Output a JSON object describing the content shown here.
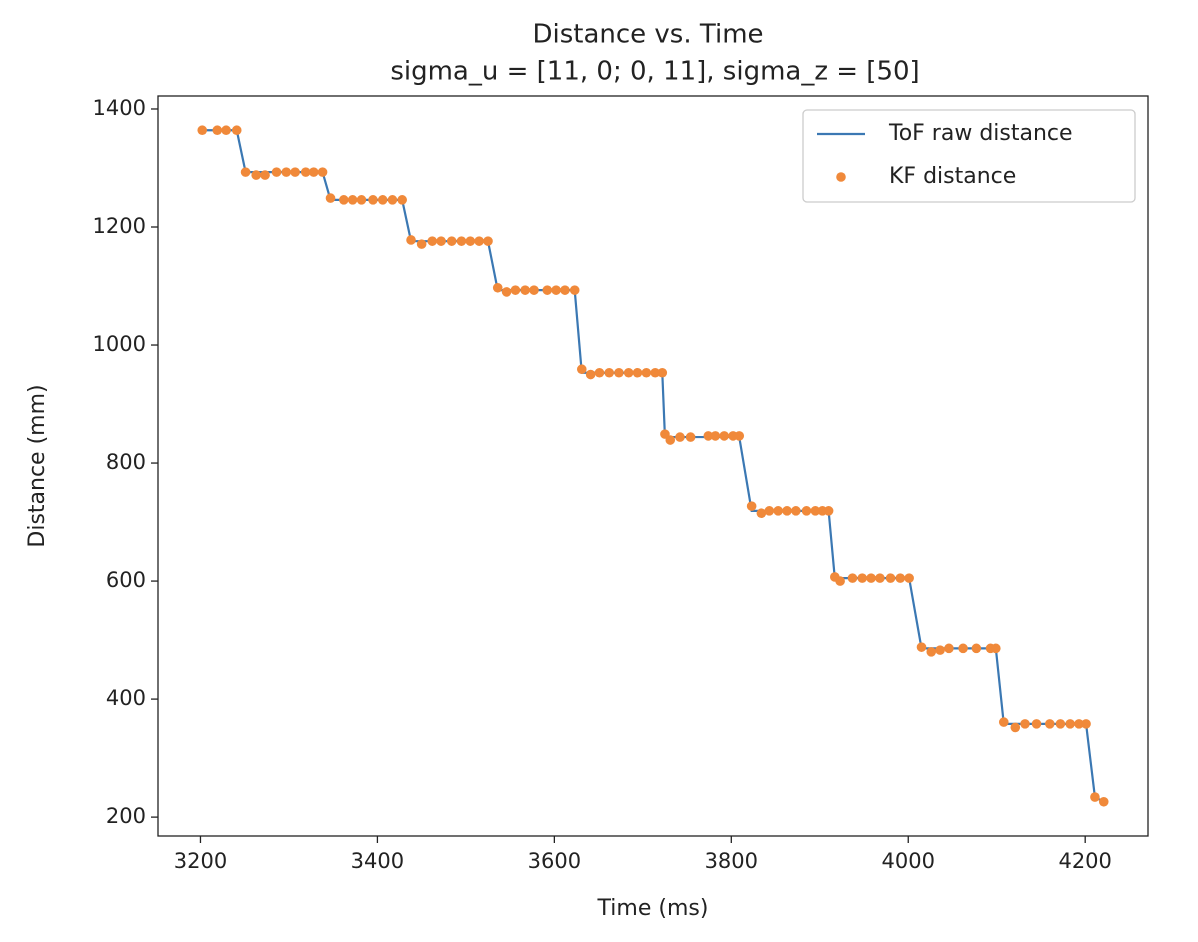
{
  "chart_data": {
    "type": "line",
    "title": "Distance vs. Time",
    "subtitle": "sigma_u = [11, 0; 0, 11], sigma_z = [50]",
    "x_label": "Time (ms)",
    "y_label": "Distance (mm)",
    "x": [
      3202,
      3219,
      3229,
      3241,
      3251,
      3263,
      3273,
      3286,
      3297,
      3307,
      3319,
      3328,
      3338,
      3347,
      3362,
      3372,
      3382,
      3395,
      3406,
      3417,
      3428,
      3438,
      3450,
      3462,
      3472,
      3484,
      3495,
      3505,
      3515,
      3525,
      3536,
      3546,
      3556,
      3567,
      3577,
      3592,
      3602,
      3612,
      3623,
      3631,
      3641,
      3651,
      3662,
      3673,
      3684,
      3694,
      3704,
      3714,
      3722,
      3725,
      3731,
      3742,
      3754,
      3774,
      3782,
      3792,
      3802,
      3809,
      3823,
      3834,
      3843,
      3853,
      3863,
      3873,
      3885,
      3895,
      3903,
      3910,
      3917,
      3923,
      3937,
      3948,
      3958,
      3968,
      3980,
      3991,
      4001,
      4015,
      4026,
      4036,
      4046,
      4062,
      4077,
      4093,
      4099,
      4108,
      4121,
      4132,
      4145,
      4160,
      4172,
      4183,
      4193,
      4201,
      4211,
      4221
    ],
    "series": [
      {
        "name": "ToF raw distance",
        "kind": "line",
        "color": "#3b78b3",
        "values": [
          1364,
          1364,
          1364,
          1364,
          1293,
          1293,
          1293,
          1293,
          1293,
          1293,
          1293,
          1293,
          1293,
          1246,
          1246,
          1246,
          1246,
          1246,
          1246,
          1246,
          1246,
          1176,
          1176,
          1176,
          1176,
          1176,
          1176,
          1176,
          1176,
          1176,
          1093,
          1093,
          1093,
          1093,
          1093,
          1093,
          1093,
          1093,
          1093,
          953,
          953,
          953,
          953,
          953,
          953,
          953,
          953,
          953,
          953,
          844,
          844,
          844,
          844,
          844,
          844,
          844,
          844,
          844,
          719,
          719,
          719,
          719,
          719,
          719,
          719,
          719,
          719,
          719,
          605,
          605,
          605,
          605,
          605,
          605,
          605,
          605,
          605,
          486,
          486,
          486,
          486,
          486,
          486,
          486,
          486,
          358,
          358,
          358,
          358,
          358,
          358,
          358,
          358,
          358,
          234,
          226
        ]
      },
      {
        "name": "KF distance",
        "kind": "scatter",
        "color": "#f0893a",
        "values": [
          1364,
          1364,
          1364,
          1364,
          1293,
          1288,
          1288,
          1293,
          1293,
          1293,
          1293,
          1293,
          1293,
          1249,
          1246,
          1246,
          1246,
          1246,
          1246,
          1246,
          1246,
          1178,
          1171,
          1176,
          1176,
          1176,
          1176,
          1176,
          1176,
          1176,
          1097,
          1090,
          1093,
          1093,
          1093,
          1093,
          1093,
          1093,
          1093,
          959,
          950,
          953,
          953,
          953,
          953,
          953,
          953,
          953,
          953,
          849,
          839,
          844,
          844,
          846,
          846,
          846,
          846,
          846,
          727,
          715,
          719,
          719,
          719,
          719,
          719,
          719,
          719,
          719,
          607,
          600,
          605,
          605,
          605,
          605,
          605,
          605,
          605,
          488,
          480,
          483,
          486,
          486,
          486,
          486,
          486,
          361,
          352,
          358,
          358,
          358,
          358,
          358,
          358,
          358,
          234,
          226
        ]
      }
    ],
    "xlim": [
      3152,
      4271
    ],
    "ylim": [
      168,
      1422
    ],
    "xticks": [
      3200,
      3400,
      3600,
      3800,
      4000,
      4200
    ],
    "yticks": [
      200,
      400,
      600,
      800,
      1000,
      1200,
      1400
    ],
    "legend": "upper right"
  }
}
